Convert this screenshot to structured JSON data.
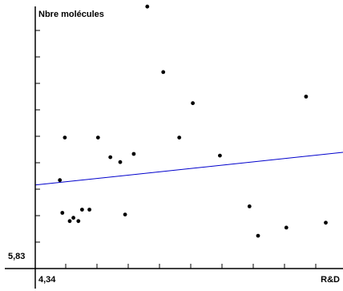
{
  "colors": {
    "background": "#ffffff",
    "axis": "#000000",
    "point": "#000000",
    "trend_line": "#0000cc"
  },
  "chart_data": {
    "type": "scatter",
    "title": "",
    "ylabel": "Nbre molécules",
    "xlabel": "R&D",
    "x_corner_label": "4,34",
    "y_corner_label": "5,83",
    "grid": false,
    "legend": "none",
    "x_range": [
      4.34,
      6.84
    ],
    "y_range": [
      5.83,
      6.65
    ],
    "points": [
      {
        "x": 4.54,
        "y": 6.1
      },
      {
        "x": 4.56,
        "y": 6.0
      },
      {
        "x": 4.58,
        "y": 6.23
      },
      {
        "x": 4.62,
        "y": 5.975
      },
      {
        "x": 4.65,
        "y": 5.985
      },
      {
        "x": 4.69,
        "y": 5.975
      },
      {
        "x": 4.72,
        "y": 6.01
      },
      {
        "x": 4.78,
        "y": 6.01
      },
      {
        "x": 4.85,
        "y": 6.23
      },
      {
        "x": 4.95,
        "y": 6.17
      },
      {
        "x": 5.03,
        "y": 6.155
      },
      {
        "x": 5.07,
        "y": 5.995
      },
      {
        "x": 5.14,
        "y": 6.18
      },
      {
        "x": 5.25,
        "y": 6.63
      },
      {
        "x": 5.38,
        "y": 6.43
      },
      {
        "x": 5.51,
        "y": 6.23
      },
      {
        "x": 5.62,
        "y": 6.335
      },
      {
        "x": 5.84,
        "y": 6.175
      },
      {
        "x": 6.08,
        "y": 6.02
      },
      {
        "x": 6.15,
        "y": 5.93
      },
      {
        "x": 6.38,
        "y": 5.955
      },
      {
        "x": 6.54,
        "y": 6.355
      },
      {
        "x": 6.7,
        "y": 5.97
      }
    ],
    "trend_line": {
      "x": [
        4.34,
        6.84
      ],
      "y": [
        6.085,
        6.185
      ]
    }
  }
}
